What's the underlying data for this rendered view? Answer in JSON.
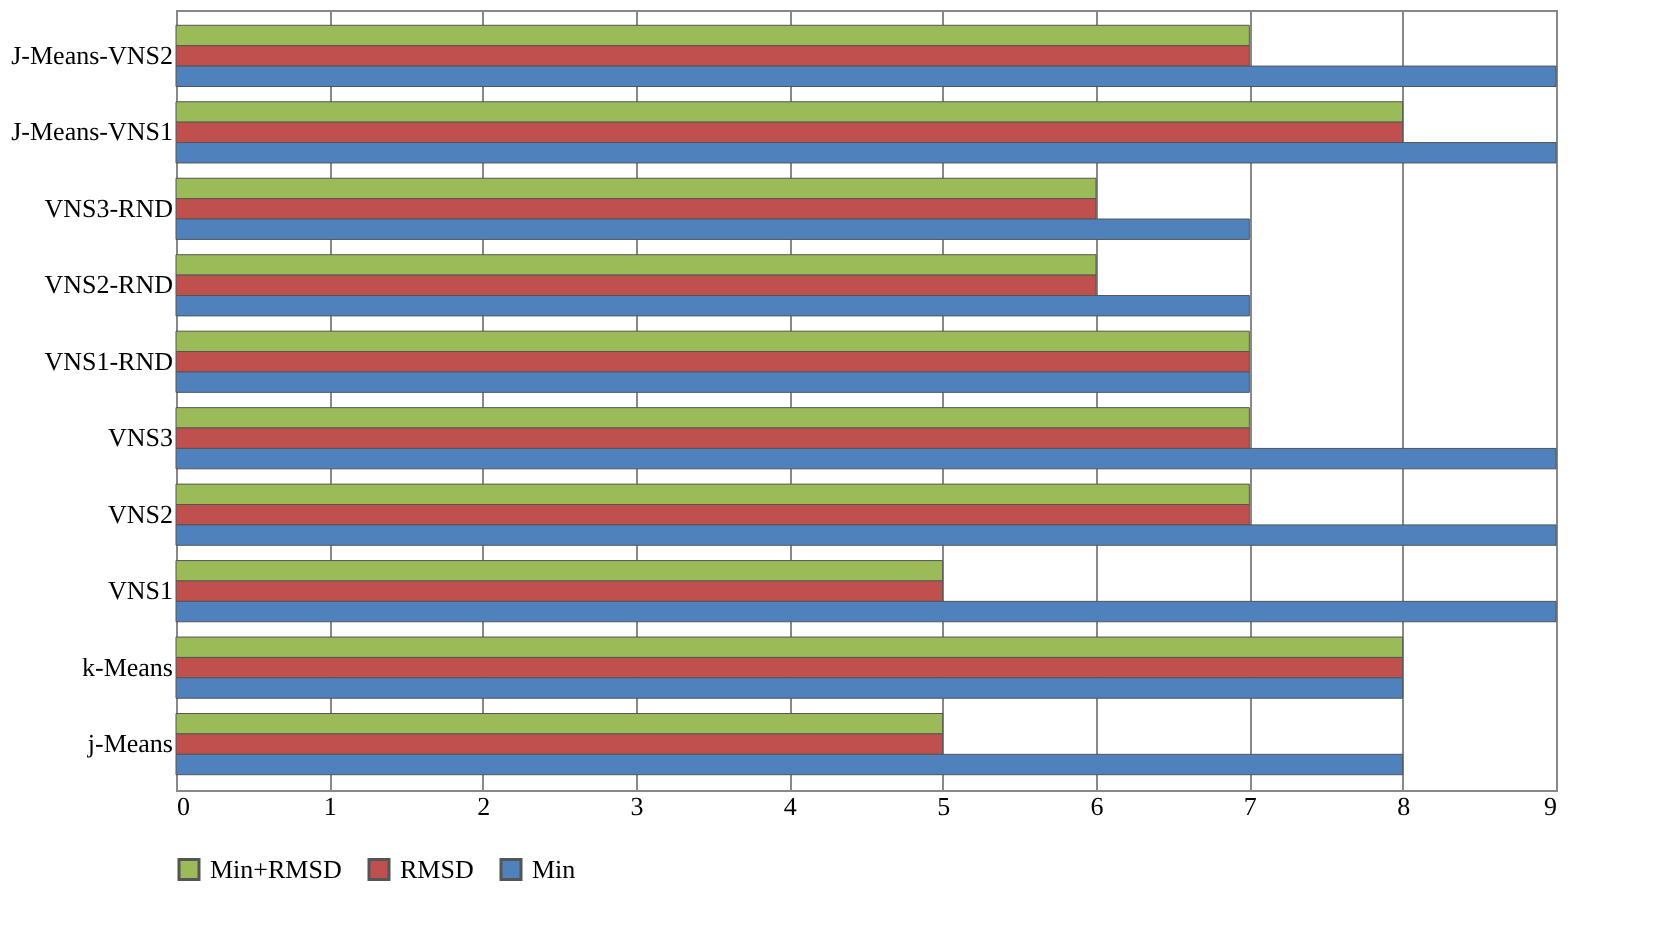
{
  "chart_data": {
    "type": "bar",
    "orientation": "horizontal",
    "categories": [
      "J-Means-VNS2",
      "J-Means-VNS1",
      "VNS3-RND",
      "VNS2-RND",
      "VNS1-RND",
      "VNS3",
      "VNS2",
      "VNS1",
      "k-Means",
      "j-Means"
    ],
    "series": [
      {
        "name": "Min+RMSD",
        "color": "#9bbb59",
        "values": [
          7,
          8,
          6,
          6,
          7,
          7,
          7,
          5,
          8,
          5
        ]
      },
      {
        "name": "RMSD",
        "color": "#c0504d",
        "values": [
          7,
          8,
          6,
          6,
          7,
          7,
          7,
          5,
          8,
          5
        ]
      },
      {
        "name": "Min",
        "color": "#4f81bd",
        "values": [
          9,
          9,
          7,
          7,
          7,
          9,
          9,
          9,
          8,
          8
        ]
      }
    ],
    "xlim": [
      0,
      9
    ],
    "xticks": [
      0,
      1,
      2,
      3,
      4,
      5,
      6,
      7,
      8,
      9
    ],
    "grid": "x",
    "legend": "bottom"
  }
}
